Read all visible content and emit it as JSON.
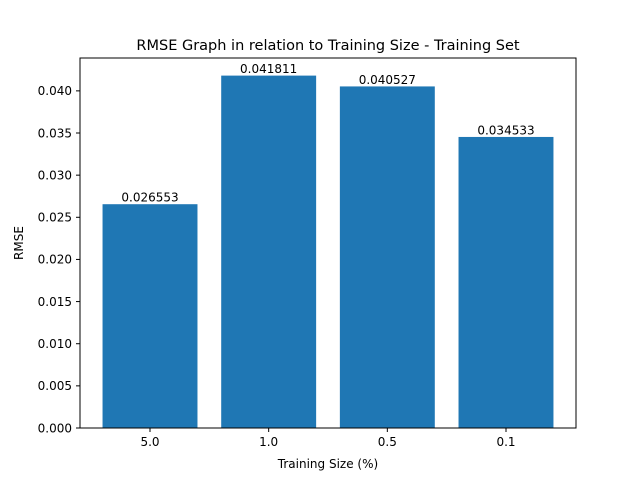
{
  "chart_data": {
    "type": "bar",
    "title": "RMSE Graph in relation to Training Size - Training Set",
    "xlabel": "Training Size (%)",
    "ylabel": "RMSE",
    "categories": [
      "5.0",
      "1.0",
      "0.5",
      "0.1"
    ],
    "values": [
      0.026553,
      0.041811,
      0.040527,
      0.034533
    ],
    "value_labels": [
      "0.026553",
      "0.041811",
      "0.040527",
      "0.034533"
    ],
    "y_ticks": [
      "0.000",
      "0.005",
      "0.010",
      "0.015",
      "0.020",
      "0.025",
      "0.030",
      "0.035",
      "0.040"
    ],
    "ylim": [
      0,
      0.0439
    ],
    "bar_color": "#1f77b4",
    "grid": false,
    "legend": "none"
  }
}
